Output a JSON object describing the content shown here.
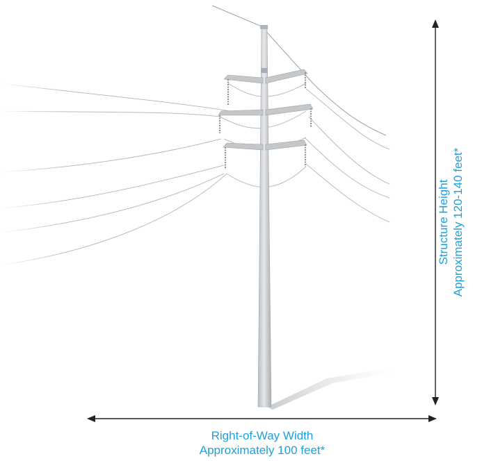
{
  "dimensions": {
    "height": {
      "title": "Structure Height",
      "value": "Approximately 120-140 feet*"
    },
    "width": {
      "title": "Right-of-Way Width",
      "value": "Approximately 100 feet*"
    }
  },
  "colors": {
    "accent": "#1fa0d8",
    "arrow": "#222222",
    "pole": "#c9cdd0",
    "wire": "#b8bcc0"
  }
}
